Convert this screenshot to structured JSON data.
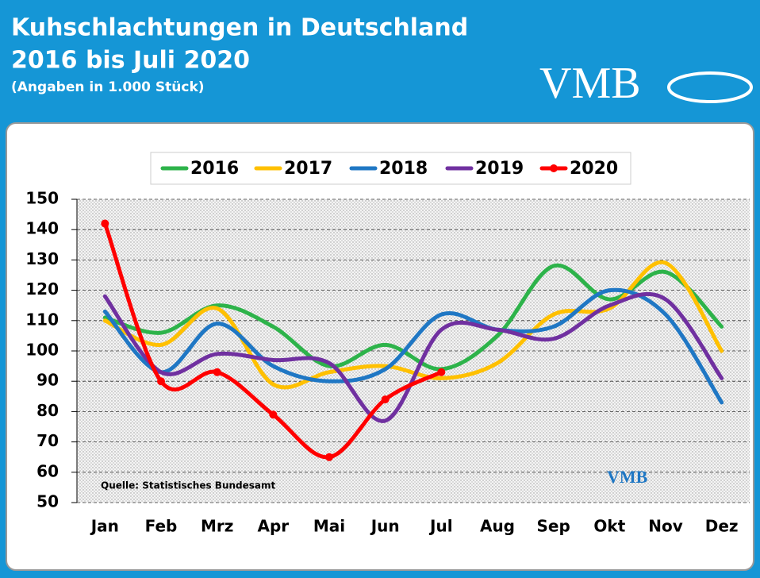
{
  "chart_data": {
    "type": "line",
    "title": [
      "Kuhschlachtungen in Deutschland",
      "2016 bis Juli 2020"
    ],
    "subtitle": "(Angaben in 1.000 Stück)",
    "brand": "VMB",
    "source": "Quelle: Statistisches Bundesamt",
    "categories": [
      "Jan",
      "Feb",
      "Mrz",
      "Apr",
      "Mai",
      "Jun",
      "Jul",
      "Aug",
      "Sep",
      "Okt",
      "Nov",
      "Dez"
    ],
    "series": [
      {
        "name": "2016",
        "color": "#2db34a",
        "values": [
          111,
          106,
          115,
          108,
          95,
          102,
          94,
          105,
          128,
          117,
          126,
          108
        ]
      },
      {
        "name": "2017",
        "color": "#ffc000",
        "values": [
          110,
          102,
          114,
          89,
          93,
          95,
          91,
          96,
          112,
          114,
          129,
          100
        ]
      },
      {
        "name": "2018",
        "color": "#1f77c4",
        "values": [
          113,
          93,
          109,
          95,
          90,
          94,
          112,
          107,
          108,
          120,
          112,
          83
        ]
      },
      {
        "name": "2019",
        "color": "#7030a0",
        "values": [
          118,
          93,
          99,
          97,
          96,
          77,
          107,
          107,
          104,
          115,
          117,
          91
        ]
      },
      {
        "name": "2020",
        "color": "#ff0000",
        "markers": true,
        "values": [
          142,
          90,
          93,
          79,
          65,
          84,
          93,
          null,
          null,
          null,
          null,
          null
        ]
      }
    ],
    "ylim": [
      50,
      150
    ],
    "yticks": [
      50,
      60,
      70,
      80,
      90,
      100,
      110,
      120,
      130,
      140,
      150
    ],
    "grid": true,
    "legend": "top"
  }
}
